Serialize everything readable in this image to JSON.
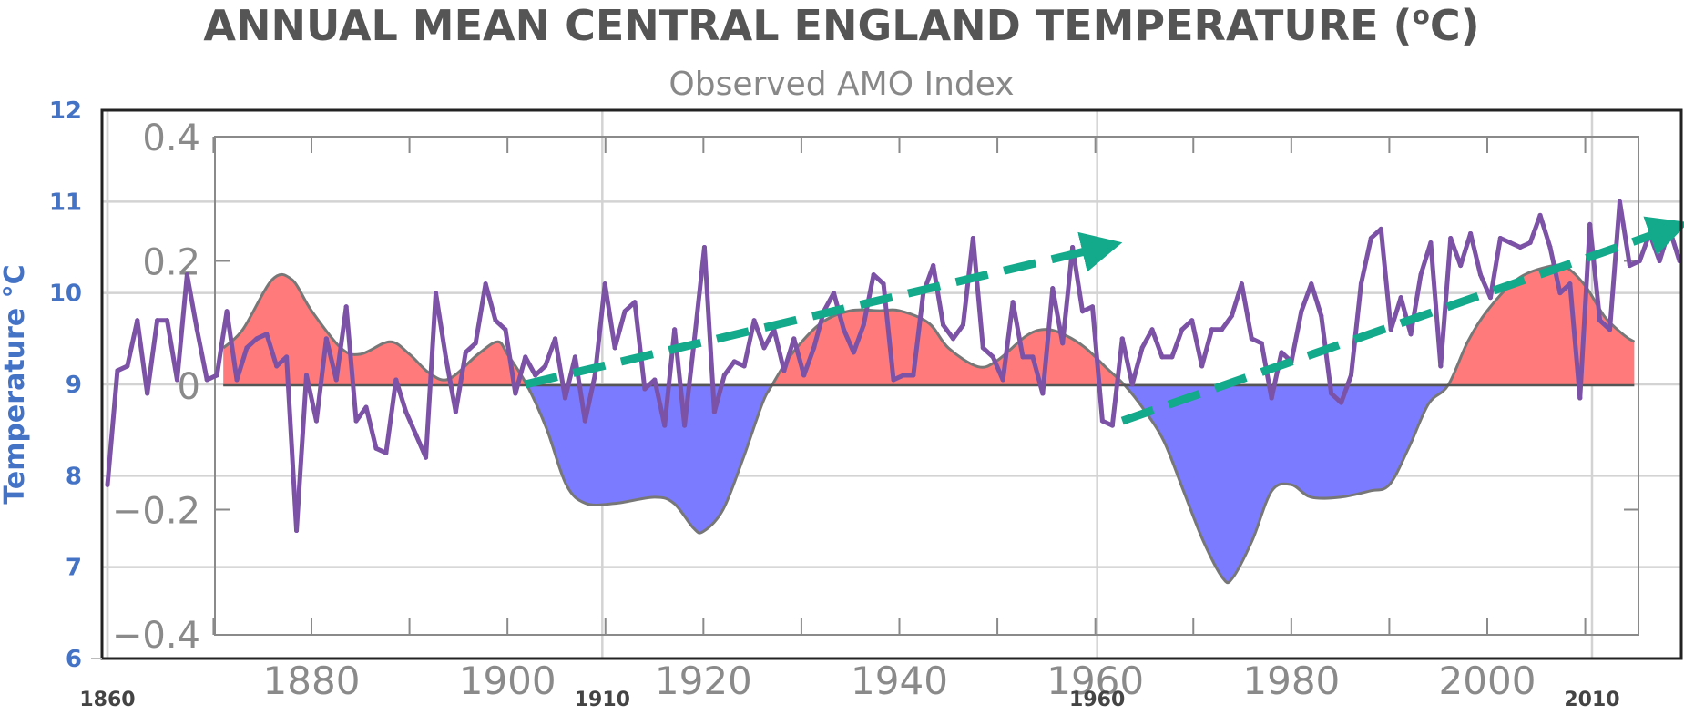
{
  "chart_data": {
    "type": "line",
    "title": "ANNUAL MEAN CENTRAL ENGLAND TEMPERATURE (",
    "title_superscript": "o",
    "title_suffix": "C)",
    "subtitle": "Observed AMO Index",
    "ylabel": "Temperature °C",
    "xlabel": "",
    "grid": true,
    "temperature_axis": {
      "ylim": [
        6,
        12
      ],
      "ticks": [
        "12",
        "11",
        "10",
        "9",
        "8",
        "7",
        "6"
      ],
      "tick_values": [
        12,
        11,
        10,
        9,
        8,
        7,
        6
      ],
      "xlim": [
        1860,
        2018
      ],
      "x_ticks": [
        "1860",
        "1910",
        "1960",
        "2010"
      ],
      "x_tick_values": [
        1860,
        1910,
        1960,
        2010
      ]
    },
    "amo_axis": {
      "ylim": [
        -0.4,
        0.4
      ],
      "ticks": [
        "0.4",
        "0.2",
        "0",
        "−0.2",
        "−0.4"
      ],
      "tick_values": [
        0.4,
        0.2,
        0,
        -0.2,
        -0.4
      ],
      "xlim": [
        1871,
        2015
      ],
      "x_ticks": [
        "1880",
        "1900",
        "1920",
        "1940",
        "1960",
        "1980",
        "2000"
      ],
      "x_tick_values": [
        1880,
        1900,
        1920,
        1940,
        1960,
        1980,
        2000
      ],
      "minor_x_tick_values": [
        1870,
        1890,
        1910,
        1930,
        1950,
        1970,
        1990,
        2010
      ]
    },
    "colors": {
      "temperature_line": "#7b52a6",
      "amo_positive_fill": "#ff7b7b",
      "amo_negative_fill": "#7b7bff",
      "amo_outline": "#777777",
      "trend_arrow": "#13a98b",
      "temperature_axis_text": "#4472c4"
    },
    "series": [
      {
        "name": "Annual mean Central England temperature (°C)",
        "axis": "temperature",
        "x": [
          1860,
          1861,
          1862,
          1863,
          1864,
          1865,
          1866,
          1867,
          1868,
          1869,
          1870,
          1871,
          1872,
          1873,
          1874,
          1875,
          1876,
          1877,
          1878,
          1879,
          1880,
          1881,
          1882,
          1883,
          1884,
          1885,
          1886,
          1887,
          1888,
          1889,
          1890,
          1891,
          1892,
          1893,
          1894,
          1895,
          1896,
          1897,
          1898,
          1899,
          1900,
          1901,
          1902,
          1903,
          1904,
          1905,
          1906,
          1907,
          1908,
          1909,
          1910,
          1911,
          1912,
          1913,
          1914,
          1915,
          1916,
          1917,
          1918,
          1919,
          1920,
          1921,
          1922,
          1923,
          1924,
          1925,
          1926,
          1927,
          1928,
          1929,
          1930,
          1931,
          1932,
          1933,
          1934,
          1935,
          1936,
          1937,
          1938,
          1939,
          1940,
          1941,
          1942,
          1943,
          1944,
          1945,
          1946,
          1947,
          1948,
          1949,
          1950,
          1951,
          1952,
          1953,
          1954,
          1955,
          1956,
          1957,
          1958,
          1959,
          1960,
          1961,
          1962,
          1963,
          1964,
          1965,
          1966,
          1967,
          1968,
          1969,
          1970,
          1971,
          1972,
          1973,
          1974,
          1975,
          1976,
          1977,
          1978,
          1979,
          1980,
          1981,
          1982,
          1983,
          1984,
          1985,
          1986,
          1987,
          1988,
          1989,
          1990,
          1991,
          1992,
          1993,
          1994,
          1995,
          1996,
          1997,
          1998,
          1999,
          2000,
          2001,
          2002,
          2003,
          2004,
          2005,
          2006,
          2007,
          2008,
          2009,
          2010,
          2011,
          2012,
          2013,
          2014,
          2015,
          2016,
          2017,
          2018
        ],
        "values": [
          7.9,
          9.15,
          9.2,
          9.7,
          8.9,
          9.7,
          9.7,
          9.05,
          10.2,
          9.6,
          9.05,
          9.1,
          9.8,
          9.05,
          9.4,
          9.5,
          9.55,
          9.2,
          9.3,
          7.4,
          9.1,
          8.6,
          9.5,
          9.05,
          9.85,
          8.6,
          8.75,
          8.3,
          8.25,
          9.05,
          8.7,
          8.45,
          8.2,
          10.0,
          9.3,
          8.7,
          9.35,
          9.45,
          10.1,
          9.7,
          9.6,
          8.9,
          9.3,
          9.1,
          9.2,
          9.5,
          8.85,
          9.3,
          8.6,
          9.1,
          10.1,
          9.4,
          9.8,
          9.9,
          8.95,
          9.05,
          8.55,
          9.6,
          8.55,
          9.5,
          10.5,
          8.7,
          9.1,
          9.25,
          9.2,
          9.7,
          9.4,
          9.6,
          9.15,
          9.5,
          9.1,
          9.4,
          9.8,
          10.0,
          9.6,
          9.35,
          9.65,
          10.2,
          10.1,
          9.05,
          9.1,
          9.1,
          10.0,
          10.3,
          9.65,
          9.5,
          9.65,
          10.6,
          9.4,
          9.3,
          9.05,
          9.9,
          9.3,
          9.3,
          8.9,
          10.05,
          9.45,
          10.5,
          9.8,
          9.85,
          8.6,
          8.55,
          9.5,
          9.0,
          9.4,
          9.6,
          9.3,
          9.3,
          9.6,
          9.7,
          9.2,
          9.6,
          9.6,
          9.75,
          10.1,
          9.5,
          9.45,
          8.85,
          9.35,
          9.25,
          9.8,
          10.1,
          9.75,
          8.9,
          8.8,
          9.1,
          10.1,
          10.6,
          10.7,
          9.6,
          9.95,
          9.55,
          10.2,
          10.55,
          9.2,
          10.6,
          10.3,
          10.65,
          10.2,
          9.95,
          10.6,
          10.55,
          10.5,
          10.55,
          10.85,
          10.5,
          10.0,
          10.1,
          8.85,
          10.75,
          9.7,
          9.6,
          11.0,
          10.3,
          10.35,
          10.65,
          10.35,
          10.7,
          10.35
        ]
      },
      {
        "name": "Observed AMO Index (smoothed)",
        "axis": "amo",
        "x": [
          1871,
          1873,
          1876,
          1878,
          1880,
          1883,
          1885,
          1888,
          1890,
          1892,
          1894,
          1897,
          1899,
          1900,
          1902,
          1904,
          1906,
          1908,
          1911,
          1915,
          1917,
          1919,
          1920,
          1922,
          1924,
          1926,
          1927,
          1929,
          1932,
          1935,
          1938,
          1940,
          1943,
          1945,
          1948,
          1950,
          1953,
          1955,
          1957,
          1959,
          1961,
          1963,
          1965,
          1967,
          1969,
          1971,
          1973,
          1974,
          1976,
          1978,
          1980,
          1982,
          1985,
          1988,
          1990,
          1992,
          1994,
          1996,
          1998,
          2000,
          2003,
          2006,
          2008,
          2010,
          2012,
          2014,
          2015
        ],
        "values": [
          0.06,
          0.09,
          0.17,
          0.17,
          0.12,
          0.06,
          0.05,
          0.07,
          0.05,
          0.02,
          0.01,
          0.05,
          0.07,
          0.05,
          0.0,
          -0.07,
          -0.16,
          -0.19,
          -0.19,
          -0.18,
          -0.19,
          -0.23,
          -0.235,
          -0.2,
          -0.12,
          -0.03,
          0.0,
          0.05,
          0.1,
          0.12,
          0.12,
          0.12,
          0.1,
          0.06,
          0.03,
          0.04,
          0.08,
          0.09,
          0.08,
          0.06,
          0.03,
          0.0,
          -0.04,
          -0.09,
          -0.17,
          -0.25,
          -0.31,
          -0.31,
          -0.25,
          -0.17,
          -0.16,
          -0.18,
          -0.18,
          -0.17,
          -0.16,
          -0.1,
          -0.03,
          0.0,
          0.07,
          0.12,
          0.17,
          0.19,
          0.19,
          0.16,
          0.11,
          0.08,
          0.07
        ]
      }
    ],
    "annotations": [
      {
        "name": "trend-arrow-1",
        "type": "dashed-arrow",
        "from": [
          1902,
          9.0
        ],
        "to": [
          1960,
          10.5
        ]
      },
      {
        "name": "trend-arrow-2",
        "type": "dashed-arrow",
        "from": [
          1962,
          8.6
        ],
        "to": [
          2017,
          10.7
        ]
      }
    ]
  }
}
